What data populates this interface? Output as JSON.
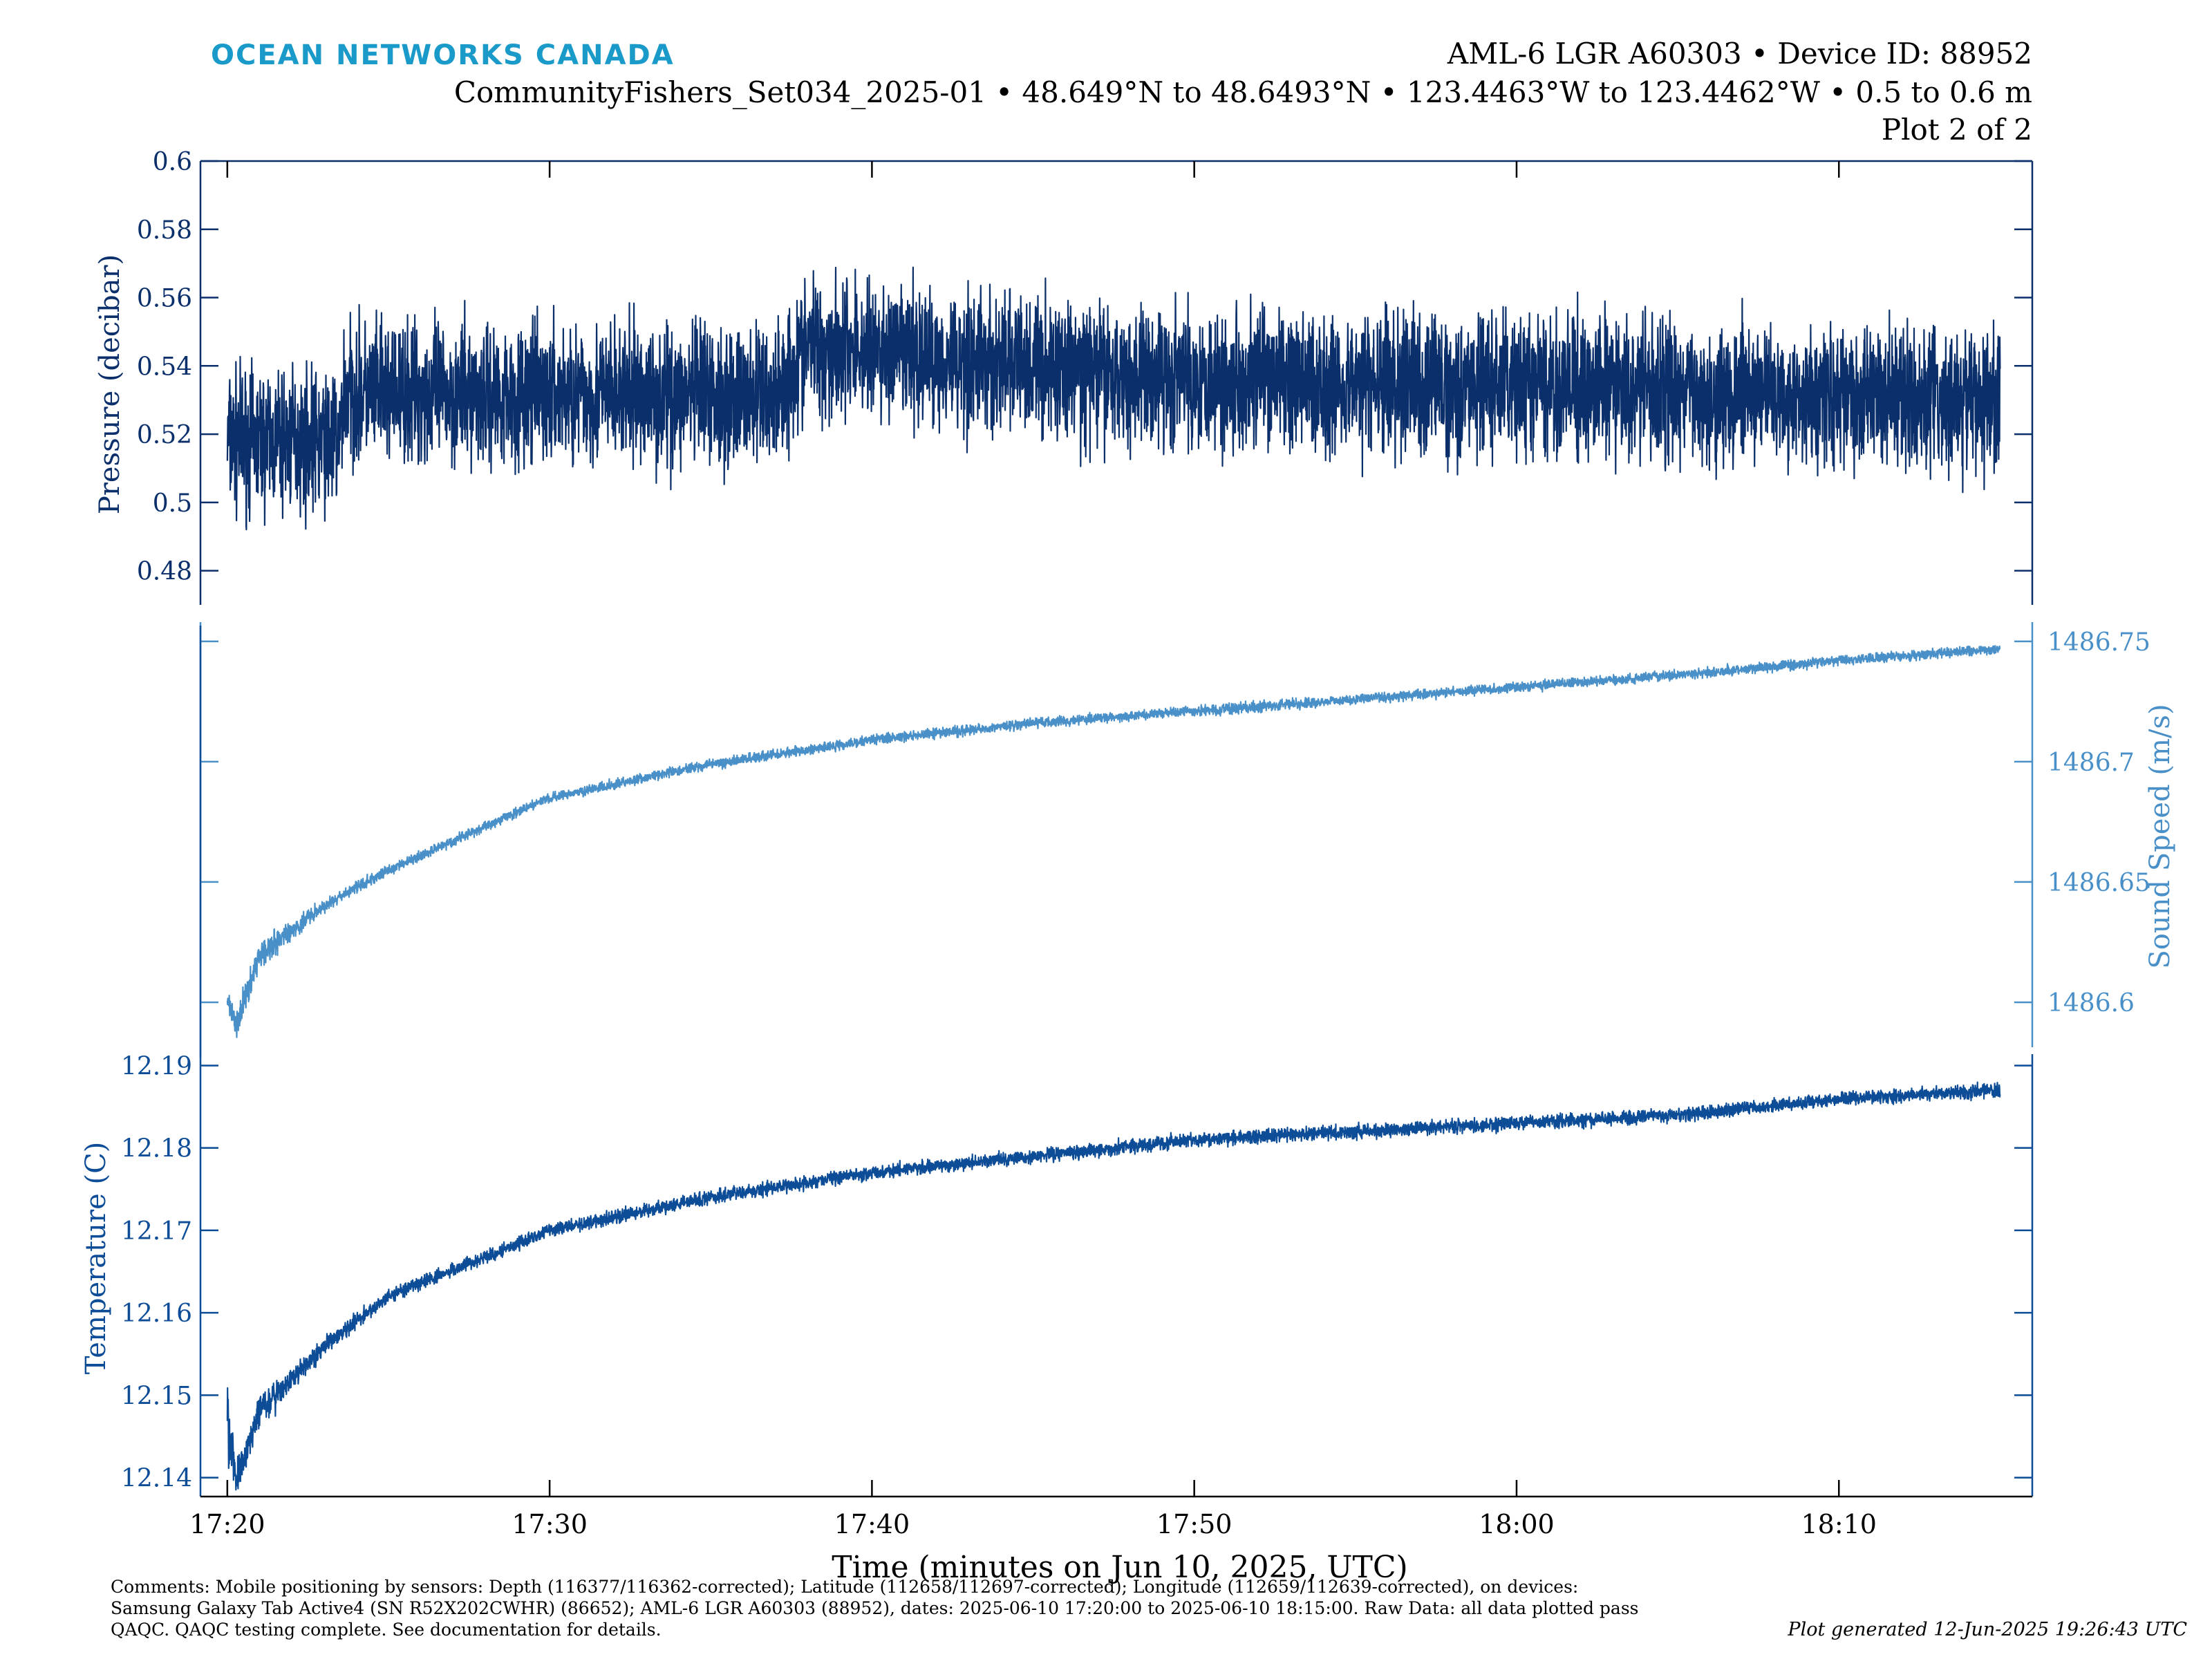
{
  "header": {
    "brand": "OCEAN NETWORKS CANADA",
    "title_line1": "AML-6 LGR A60303 • Device ID: 88952",
    "title_line2": "CommunityFishers_Set034_2025-01 • 48.649°N to 48.6493°N • 123.4463°W to 123.4462°W • 0.5 to 0.6 m",
    "title_line3": "Plot 2 of 2"
  },
  "colors": {
    "pressure": "#0a2f6b",
    "sound_speed": "#4a90c8",
    "temperature": "#0d4c96",
    "brand": "#1a9ac9",
    "axis": "#000000"
  },
  "chart_data": {
    "type": "line",
    "xlabel": "Time (minutes on Jun 10, 2025, UTC)",
    "x_tick_labels": [
      "17:20",
      "17:30",
      "17:40",
      "17:50",
      "18:00",
      "18:10"
    ],
    "x_range": [
      "17:19:10",
      "18:16:00"
    ],
    "x_sample_step_min": 0.25,
    "panels": [
      {
        "name": "pressure",
        "ylabel": "Pressure (decibar)",
        "axis_side": "left",
        "y_range": [
          0.47,
          0.6
        ],
        "y_ticks": [
          "0.48",
          "0.5",
          "0.52",
          "0.54",
          "0.56",
          "0.58",
          "0.6"
        ],
        "series": [
          {
            "x_minutes_after_1720": [
              0,
              3.5,
              3.6,
              17.0,
              18.0,
              28.0,
              55.0
            ],
            "y_center": [
              0.518,
              0.518,
              0.532,
              0.531,
              0.546,
              0.537,
              0.53
            ],
            "noise_half_range": [
              0.03,
              0.03,
              0.03,
              0.03,
              0.03,
              0.03,
              0.03
            ]
          }
        ]
      },
      {
        "name": "sound_speed",
        "ylabel": "Sound Speed (m/s)",
        "axis_side": "right",
        "y_range": [
          1486.577,
          1486.758
        ],
        "y_ticks": [
          "1486.6",
          "1486.65",
          "1486.7",
          "1486.75"
        ],
        "series": [
          {
            "x_minutes_after_1720": [
              0,
              0.3,
              1,
              3,
              5,
              10,
              15,
              20,
              25,
              30,
              35,
              40,
              45,
              50,
              55
            ],
            "y_center": [
              1486.6,
              1486.592,
              1486.62,
              1486.64,
              1486.655,
              1486.685,
              1486.699,
              1486.709,
              1486.716,
              1486.721,
              1486.726,
              1486.731,
              1486.736,
              1486.742,
              1486.747
            ],
            "noise_half_range": [
              0.004,
              0.01,
              0.008,
              0.004,
              0.003,
              0.003,
              0.003,
              0.003,
              0.003,
              0.003,
              0.003,
              0.003,
              0.003,
              0.003,
              0.003
            ]
          }
        ]
      },
      {
        "name": "temperature",
        "ylabel": "Temperature (C)",
        "axis_side": "left",
        "y_range": [
          12.1377,
          12.1918
        ],
        "y_ticks": [
          "12.14",
          "12.15",
          "12.16",
          "12.17",
          "12.18",
          "12.19"
        ],
        "series": [
          {
            "x_minutes_after_1720": [
              0,
              0.3,
              1,
              3,
              5,
              10,
              15,
              20,
              25,
              30,
              35,
              40,
              45,
              50,
              55
            ],
            "y_center": [
              12.146,
              12.14,
              12.148,
              12.156,
              12.162,
              12.17,
              12.174,
              12.177,
              12.179,
              12.181,
              12.182,
              12.183,
              12.184,
              12.186,
              12.187
            ],
            "noise_half_range": [
              0.006,
              0.003,
              0.003,
              0.0015,
              0.0012,
              0.0012,
              0.0012,
              0.0012,
              0.0012,
              0.0012,
              0.0012,
              0.0012,
              0.0012,
              0.0012,
              0.0012
            ]
          }
        ]
      }
    ]
  },
  "footer": {
    "comments_line1": "Comments: Mobile positioning by sensors: Depth (116377/116362-corrected); Latitude (112658/112697-corrected); Longitude (112659/112639-corrected), on devices:",
    "comments_line2": "Samsung Galaxy Tab Active4 (SN R52X202CWHR) (86652); AML-6 LGR A60303 (88952), dates: 2025-06-10 17:20:00 to 2025-06-10 18:15:00. Raw Data: all data plotted pass",
    "comments_line3": "QAQC. QAQC testing complete. See documentation for details.",
    "generated": "Plot generated 12-Jun-2025 19:26:43 UTC"
  }
}
